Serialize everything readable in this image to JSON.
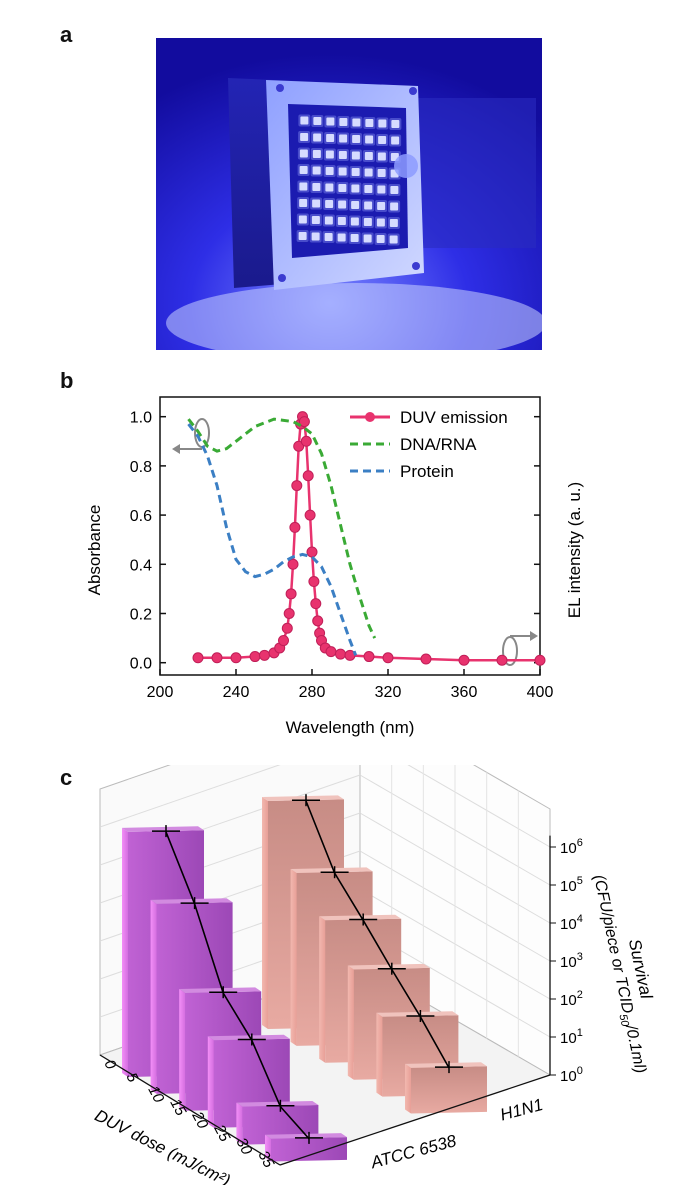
{
  "panels": {
    "a": "a",
    "b": "b",
    "c": "c"
  },
  "photo": {
    "subject": "deep-ultraviolet LED array module",
    "led_rows": 8,
    "led_cols": 8,
    "colors": {
      "background": "#1a12c8",
      "glow": "#3a3cff",
      "board": "#b9c6ff"
    }
  },
  "chart_data": [
    {
      "id": "b",
      "type": "line",
      "xlabel": "Wavelength (nm)",
      "ylabel": "Absorbance",
      "y2label": "EL intensity (a. u.)",
      "xlim": [
        200,
        400
      ],
      "ylim": [
        -0.05,
        1.08
      ],
      "xticks": [
        200,
        240,
        280,
        320,
        360,
        400
      ],
      "yticks": [
        0.0,
        0.2,
        0.4,
        0.6,
        0.8,
        1.0
      ],
      "ytick_labels": [
        "0.0",
        "0.2",
        "0.4",
        "0.6",
        "0.8",
        "1.0"
      ],
      "legend_position": "top-right",
      "series": [
        {
          "name": "DUV emission",
          "color": "#e8336e",
          "style": "line-markers",
          "x": [
            220,
            230,
            240,
            250,
            255,
            260,
            263,
            265,
            267,
            268,
            269,
            270,
            271,
            272,
            273,
            274,
            275,
            276,
            277,
            278,
            279,
            280,
            281,
            282,
            283,
            284,
            285,
            287,
            290,
            295,
            300,
            310,
            320,
            340,
            360,
            380,
            400
          ],
          "y": [
            0.02,
            0.02,
            0.02,
            0.025,
            0.03,
            0.04,
            0.06,
            0.09,
            0.14,
            0.2,
            0.28,
            0.4,
            0.55,
            0.72,
            0.88,
            0.97,
            1.0,
            0.98,
            0.9,
            0.76,
            0.6,
            0.45,
            0.33,
            0.24,
            0.17,
            0.12,
            0.09,
            0.06,
            0.045,
            0.035,
            0.03,
            0.025,
            0.02,
            0.015,
            0.01,
            0.01,
            0.01
          ]
        },
        {
          "name": "DNA/RNA",
          "color": "#3aaa35",
          "style": "dashed",
          "x": [
            215,
            220,
            225,
            230,
            235,
            240,
            250,
            260,
            270,
            275,
            280,
            285,
            290,
            295,
            300,
            305,
            310,
            313
          ],
          "y": [
            0.99,
            0.94,
            0.88,
            0.86,
            0.87,
            0.9,
            0.96,
            0.99,
            0.98,
            0.96,
            0.93,
            0.85,
            0.72,
            0.56,
            0.4,
            0.27,
            0.15,
            0.1
          ]
        },
        {
          "name": "Protein",
          "color": "#3b7fc4",
          "style": "dashed",
          "x": [
            215,
            220,
            225,
            230,
            235,
            240,
            245,
            250,
            255,
            260,
            265,
            270,
            275,
            280,
            285,
            290,
            295,
            300,
            303
          ],
          "y": [
            0.97,
            0.92,
            0.84,
            0.72,
            0.55,
            0.42,
            0.37,
            0.35,
            0.36,
            0.38,
            0.41,
            0.43,
            0.44,
            0.43,
            0.39,
            0.31,
            0.2,
            0.09,
            0.03
          ]
        }
      ]
    },
    {
      "id": "c",
      "type": "bar",
      "title": "",
      "xlabel": "DUV dose (mJ/cm²)",
      "zlabel": "Survival",
      "zlabel_line2": "(CFU/piece or TCID",
      "zlabel_sub": "50",
      "zlabel_line2_end": "/0.1ml)",
      "x_ticks": [
        "0",
        "5",
        "10",
        "15",
        "20",
        "25",
        "30",
        "35"
      ],
      "z_ticks": [
        0,
        1,
        2,
        3,
        4,
        5,
        6
      ],
      "z_tick_base": "10",
      "z_scale": "log",
      "series": [
        {
          "name": "ATCC 6538",
          "color": "#b455c8",
          "doses": [
            0,
            5,
            10,
            15,
            20,
            25
          ],
          "log_survival": [
            6.45,
            5.0,
            3.1,
            2.3,
            1.0,
            0.6
          ]
        },
        {
          "name": "H1N1",
          "color": "#e07f78",
          "doses": [
            0,
            5,
            10,
            15,
            20,
            25
          ],
          "log_survival": [
            6.0,
            4.55,
            3.75,
            2.9,
            2.1,
            1.2
          ]
        }
      ]
    }
  ]
}
